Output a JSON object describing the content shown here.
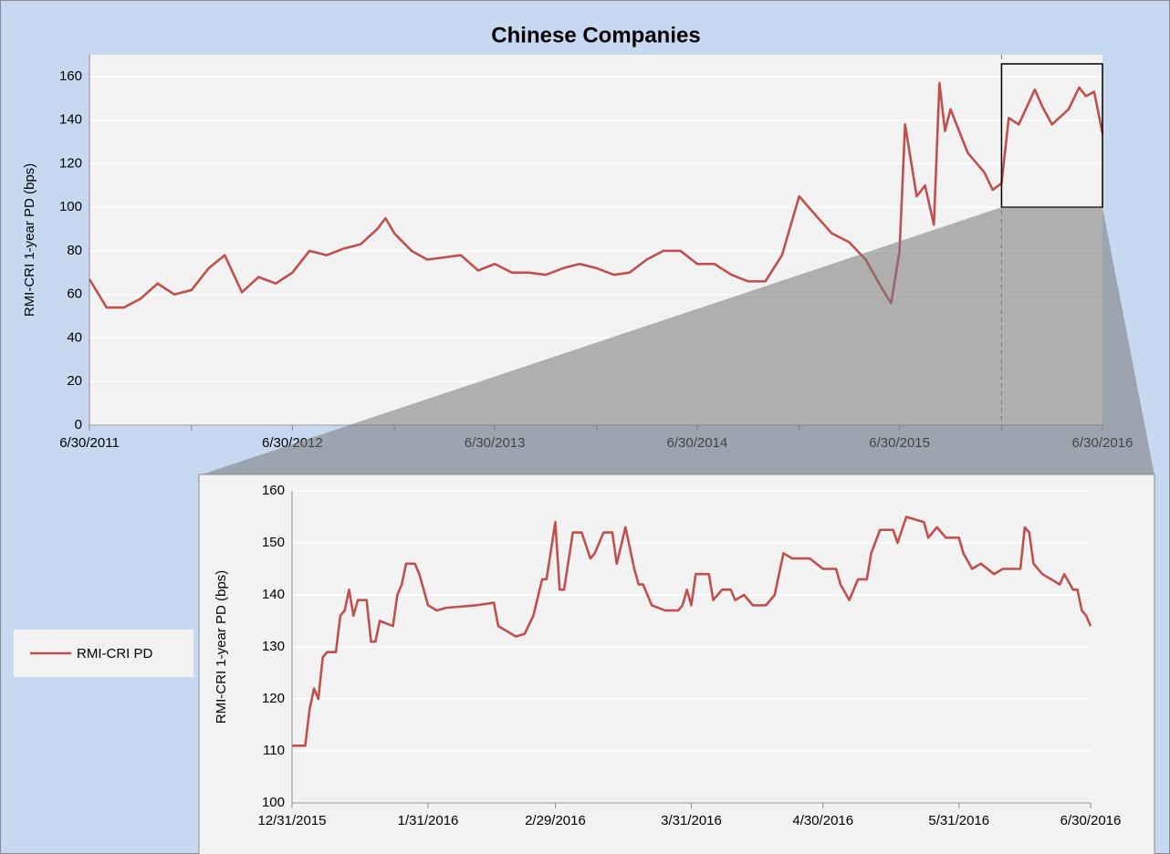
{
  "chart_data": [
    {
      "type": "line",
      "title": "Chinese Companies",
      "y_label": "RMI-CRI  1-year PD (bps)",
      "x": [
        "6/30/2011",
        "7/31/2011",
        "8/31/2011",
        "9/30/2011",
        "10/31/2011",
        "11/30/2011",
        "12/31/2011",
        "1/31/2012",
        "2/29/2012",
        "3/31/2012",
        "4/30/2012",
        "5/31/2012",
        "6/30/2012",
        "7/31/2012",
        "8/31/2012",
        "9/30/2012",
        "10/31/2012",
        "11/30/2012",
        "12/15/2012",
        "12/31/2012",
        "1/31/2013",
        "2/28/2013",
        "3/31/2013",
        "4/30/2013",
        "5/31/2013",
        "6/30/2013",
        "7/31/2013",
        "8/31/2013",
        "9/30/2013",
        "10/31/2013",
        "11/30/2013",
        "12/31/2013",
        "1/31/2014",
        "2/28/2014",
        "3/31/2014",
        "4/30/2014",
        "5/31/2014",
        "6/30/2014",
        "7/31/2014",
        "8/31/2014",
        "9/30/2014",
        "10/31/2014",
        "11/30/2014",
        "12/31/2014",
        "1/31/2015",
        "2/28/2015",
        "3/31/2015",
        "4/30/2015",
        "5/31/2015",
        "6/15/2015",
        "6/30/2015",
        "7/10/2015",
        "7/31/2015",
        "8/15/2015",
        "8/31/2015",
        "9/10/2015",
        "9/20/2015",
        "9/30/2015",
        "10/31/2015",
        "11/30/2015",
        "12/15/2015",
        "12/31/2015",
        "1/13/2016",
        "1/31/2016",
        "2/29/2016",
        "3/14/2016",
        "3/31/2016",
        "4/30/2016",
        "5/19/2016",
        "5/31/2016",
        "6/15/2016",
        "6/30/2016"
      ],
      "series": [
        {
          "name": "RMI-CRI PD",
          "color": "#c0504d",
          "values": [
            67,
            54,
            54,
            58,
            65,
            60,
            62,
            72,
            78,
            61,
            68,
            65,
            70,
            80,
            78,
            81,
            83,
            90,
            95,
            88,
            80,
            76,
            77,
            78,
            71,
            74,
            70,
            70,
            69,
            72,
            74,
            72,
            69,
            70,
            76,
            80,
            80,
            74,
            74,
            69,
            66,
            66,
            78,
            105,
            96,
            88,
            84,
            76,
            62,
            56,
            80,
            138,
            105,
            110,
            92,
            157,
            135,
            145,
            125,
            116,
            108,
            111,
            141,
            138,
            154,
            146,
            138,
            145,
            155,
            151,
            153,
            134
          ]
        }
      ],
      "xlim": [
        "6/30/2011",
        "6/30/2016"
      ],
      "xticks": [
        "6/30/2011",
        "6/30/2012",
        "6/30/2013",
        "6/30/2014",
        "6/30/2015",
        "6/30/2016"
      ],
      "x_minor_ticks": [
        "12/31/2011",
        "12/31/2012",
        "12/31/2013",
        "12/31/2014",
        "12/31/2015"
      ],
      "ylim": [
        0,
        170
      ],
      "yticks": [
        0,
        20,
        40,
        60,
        80,
        100,
        120,
        140,
        160
      ],
      "grid": true,
      "legend": "left"
    },
    {
      "type": "line",
      "y_label": "RMI-CRI  1-year PD (bps)",
      "x": [
        "12/31/2015",
        "1/3/2016",
        "1/4/2016",
        "1/5/2016",
        "1/6/2016",
        "1/7/2016",
        "1/8/2016",
        "1/10/2016",
        "1/11/2016",
        "1/12/2016",
        "1/13/2016",
        "1/14/2016",
        "1/15/2016",
        "1/17/2016",
        "1/18/2016",
        "1/19/2016",
        "1/20/2016",
        "1/23/2016",
        "1/24/2016",
        "1/25/2016",
        "1/26/2016",
        "1/28/2016",
        "1/29/2016",
        "1/31/2016",
        "2/2/2016",
        "2/4/2016",
        "2/11/2016",
        "2/15/2016",
        "2/16/2016",
        "2/18/2016",
        "2/20/2016",
        "2/22/2016",
        "2/24/2016",
        "2/26/2016",
        "2/27/2016",
        "2/29/2016",
        "3/1/2016",
        "3/2/2016",
        "3/4/2016",
        "3/6/2016",
        "3/8/2016",
        "3/9/2016",
        "3/11/2016",
        "3/13/2016",
        "3/14/2016",
        "3/16/2016",
        "3/18/2016",
        "3/19/2016",
        "3/20/2016",
        "3/22/2016",
        "3/25/2016",
        "3/28/2016",
        "3/29/2016",
        "3/30/2016",
        "3/31/2016",
        "4/1/2016",
        "4/4/2016",
        "4/5/2016",
        "4/7/2016",
        "4/9/2016",
        "4/10/2016",
        "4/12/2016",
        "4/14/2016",
        "4/17/2016",
        "4/19/2016",
        "4/21/2016",
        "4/23/2016",
        "4/27/2016",
        "4/30/2016",
        "5/3/2016",
        "5/4/2016",
        "5/6/2016",
        "5/8/2016",
        "5/10/2016",
        "5/11/2016",
        "5/13/2016",
        "5/16/2016",
        "5/17/2016",
        "5/19/2016",
        "5/23/2016",
        "5/24/2016",
        "5/26/2016",
        "5/28/2016",
        "5/31/2016",
        "6/1/2016",
        "6/3/2016",
        "6/5/2016",
        "6/8/2016",
        "6/10/2016",
        "6/14/2016",
        "6/15/2016",
        "6/16/2016",
        "6/17/2016",
        "6/19/2016",
        "6/21/2016",
        "6/23/2016",
        "6/24/2016",
        "6/26/2016",
        "6/27/2016",
        "6/28/2016",
        "6/29/2016",
        "6/30/2016"
      ],
      "series": [
        {
          "color": "#c0504d",
          "values": [
            111,
            111,
            118,
            122,
            120,
            128,
            129,
            129,
            136,
            137,
            141,
            136,
            139,
            139,
            131,
            131,
            135,
            134,
            140,
            142,
            146,
            146,
            144,
            138,
            137,
            137.5,
            138,
            138.5,
            134,
            133,
            132,
            132.5,
            136,
            143,
            143,
            154,
            141,
            141,
            152,
            152,
            147,
            148,
            152,
            152,
            146,
            153,
            145,
            142,
            142,
            138,
            137,
            137,
            138,
            141,
            138,
            144,
            144,
            139,
            141,
            141,
            139,
            140,
            138,
            138,
            140,
            148,
            147,
            147,
            145,
            145,
            142,
            139,
            143,
            143,
            148,
            152.5,
            152.5,
            150,
            155,
            154,
            151,
            153,
            151,
            151,
            148,
            145,
            146,
            144,
            145,
            145,
            153,
            152,
            146,
            144,
            143,
            142,
            144,
            141,
            141,
            137,
            136,
            134
          ]
        }
      ],
      "xlim": [
        "12/31/2015",
        "6/30/2016"
      ],
      "xticks": [
        "12/31/2015",
        "1/31/2016",
        "2/29/2016",
        "3/31/2016",
        "4/30/2016",
        "5/31/2016",
        "6/30/2016"
      ],
      "ylim": [
        100,
        160
      ],
      "yticks": [
        100,
        110,
        120,
        130,
        140,
        150,
        160
      ],
      "grid": true
    }
  ]
}
